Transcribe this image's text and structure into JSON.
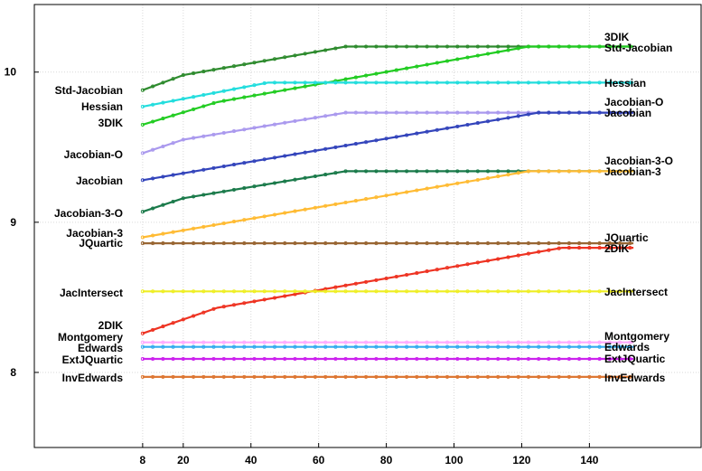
{
  "chart_data": {
    "type": "line",
    "title": "",
    "xlabel": "",
    "ylabel": "",
    "xlim": [
      -24,
      173
    ],
    "ylim": [
      7.5,
      10.45
    ],
    "xticks": [
      8,
      20,
      40,
      60,
      80,
      100,
      120,
      140
    ],
    "yticks": [
      8,
      9,
      10
    ],
    "grid": true,
    "legend": "labels at both ends of each line",
    "series": [
      {
        "name": "3DIK",
        "color": "#2e8b2e",
        "points": [
          [
            8,
            9.88
          ],
          [
            20,
            9.98
          ],
          [
            68,
            10.17
          ],
          [
            153,
            10.17
          ]
        ]
      },
      {
        "name": "Std-Jacobian",
        "color": "#22cc22",
        "points": [
          [
            8,
            9.65
          ],
          [
            30,
            9.8
          ],
          [
            122,
            10.17
          ],
          [
            153,
            10.17
          ]
        ]
      },
      {
        "name": "Hessian",
        "color": "#22dddd",
        "points": [
          [
            8,
            9.77
          ],
          [
            45,
            9.93
          ],
          [
            153,
            9.93
          ]
        ]
      },
      {
        "name": "Jacobian-O",
        "color": "#aa99ee",
        "points": [
          [
            8,
            9.46
          ],
          [
            20,
            9.55
          ],
          [
            68,
            9.73
          ],
          [
            153,
            9.73
          ]
        ]
      },
      {
        "name": "Jacobian",
        "color": "#3344bb",
        "points": [
          [
            8,
            9.28
          ],
          [
            125,
            9.73
          ],
          [
            153,
            9.73
          ]
        ]
      },
      {
        "name": "Jacobian-3-O",
        "color": "#1a7a4a",
        "points": [
          [
            8,
            9.07
          ],
          [
            20,
            9.16
          ],
          [
            68,
            9.34
          ],
          [
            153,
            9.34
          ]
        ]
      },
      {
        "name": "Jacobian-3",
        "color": "#ffbb33",
        "points": [
          [
            8,
            8.9
          ],
          [
            122,
            9.34
          ],
          [
            153,
            9.34
          ]
        ]
      },
      {
        "name": "JQuartic",
        "color": "#996633",
        "points": [
          [
            8,
            8.86
          ],
          [
            153,
            8.86
          ]
        ]
      },
      {
        "name": "2DIK",
        "color": "#ee3322",
        "points": [
          [
            8,
            8.26
          ],
          [
            30,
            8.43
          ],
          [
            132,
            8.83
          ],
          [
            153,
            8.83
          ]
        ]
      },
      {
        "name": "JacIntersect",
        "color": "#eeee22",
        "points": [
          [
            8,
            8.54
          ],
          [
            153,
            8.54
          ]
        ]
      },
      {
        "name": "Montgomery",
        "color": "#ffaaff",
        "points": [
          [
            8,
            8.2
          ],
          [
            153,
            8.2
          ]
        ]
      },
      {
        "name": "Edwards",
        "color": "#33aaee",
        "points": [
          [
            8,
            8.17
          ],
          [
            153,
            8.17
          ]
        ]
      },
      {
        "name": "ExtJQuartic",
        "color": "#cc22ee",
        "points": [
          [
            8,
            8.09
          ],
          [
            153,
            8.09
          ]
        ]
      },
      {
        "name": "InvEdwards",
        "color": "#dd7733",
        "points": [
          [
            8,
            7.97
          ],
          [
            153,
            7.97
          ]
        ]
      }
    ],
    "left_labels": [
      "Std-Jacobian",
      "Hessian",
      "3DIK",
      "Jacobian-O",
      "Jacobian",
      "Jacobian-3-O",
      "Jacobian-3",
      "JQuartic",
      "JacIntersect",
      "2DIK",
      "Montgomery",
      "Edwards",
      "ExtJQuartic",
      "InvEdwards"
    ],
    "right_labels": [
      "3DIK",
      "Std-Jacobian",
      "Hessian",
      "Jacobian-O",
      "Jacobian",
      "Jacobian-3-O",
      "Jacobian-3",
      "JQuartic",
      "2DIK",
      "JacIntersect",
      "Montgomery",
      "Edwards",
      "ExtJQuartic",
      "InvEdwards"
    ]
  }
}
